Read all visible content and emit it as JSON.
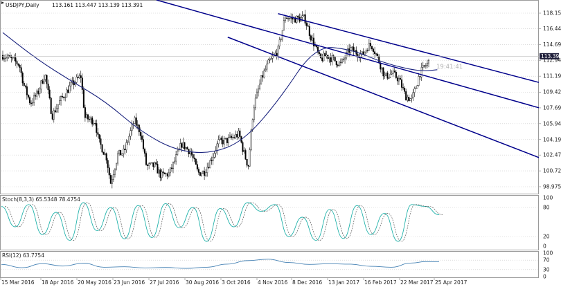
{
  "header": {
    "symbol": "USDJPY,Daily",
    "ohlc": "113.161 113.447 113.139 113.391"
  },
  "price_axis": {
    "ticks": [
      "118.155",
      "116.440",
      "114.690",
      "112.940",
      "111.190",
      "109.425",
      "107.690",
      "105.940",
      "104.190",
      "102.475",
      "100.725",
      "98.975"
    ],
    "current_price": "113.391"
  },
  "countdown": "19:41:41",
  "stoch": {
    "label": "Stoch(8,3,3) 65.5348 78.4754",
    "ticks": [
      "100",
      "80",
      "20",
      "0"
    ]
  },
  "rsi": {
    "label": "RSI(12) 63.7754",
    "ticks": [
      "100",
      "70",
      "30",
      "0"
    ]
  },
  "time_axis": {
    "labels": [
      "15 Mar 2016",
      "18 Apr 2016",
      "20 May 2016",
      "23 Jun 2016",
      "27 Jul 2016",
      "30 Aug 2016",
      "3 Oct 2016",
      "4 Nov 2016",
      "8 Dec 2016",
      "13 Jan 2017",
      "16 Feb 2017",
      "22 Mar 2017",
      "25 Apr 2017"
    ]
  },
  "colors": {
    "trendline": "#00008b",
    "moving_average": "#1a237e",
    "candle": "#000000",
    "stoch_main": "#20b2aa",
    "stoch_signal": "#555555",
    "rsi_line": "#4682b4",
    "price_tag_bg": "#1f1f3a"
  },
  "chart_data": {
    "type": "candlestick",
    "x_range": [
      "15 Mar 2016",
      "5 May 2017"
    ],
    "y_range": [
      98.0,
      119.0
    ],
    "price_path": [
      [
        "15 Mar 2016",
        113.5
      ],
      [
        "24 Mar 2016",
        113.0
      ],
      [
        "31 Mar 2016",
        112.5
      ],
      [
        "5 Apr 2016",
        110.0
      ],
      [
        "11 Apr 2016",
        108.2
      ],
      [
        "18 Apr 2016",
        109.3
      ],
      [
        "25 Apr 2016",
        111.5
      ],
      [
        "2 May 2016",
        106.8
      ],
      [
        "10 May 2016",
        108.5
      ],
      [
        "20 May 2016",
        110.1
      ],
      [
        "30 May 2016",
        111.2
      ],
      [
        "3 Jun 2016",
        106.6
      ],
      [
        "13 Jun 2016",
        106.2
      ],
      [
        "16 Jun 2016",
        104.1
      ],
      [
        "24 Jun 2016",
        102.2
      ],
      [
        "28 Jun 2016",
        99.4
      ],
      [
        "5 Jul 2016",
        102.5
      ],
      [
        "11 Jul 2016",
        102.8
      ],
      [
        "21 Jul 2016",
        106.3
      ],
      [
        "27 Jul 2016",
        105.0
      ],
      [
        "2 Aug 2016",
        101.2
      ],
      [
        "10 Aug 2016",
        101.3
      ],
      [
        "16 Aug 2016",
        100.2
      ],
      [
        "24 Aug 2016",
        100.4
      ],
      [
        "30 Aug 2016",
        102.0
      ],
      [
        "5 Sep 2016",
        103.7
      ],
      [
        "14 Sep 2016",
        102.8
      ],
      [
        "21 Sep 2016",
        100.5
      ],
      [
        "27 Sep 2016",
        100.6
      ],
      [
        "3 Oct 2016",
        101.8
      ],
      [
        "11 Oct 2016",
        103.9
      ],
      [
        "20 Oct 2016",
        104.1
      ],
      [
        "31 Oct 2016",
        104.8
      ],
      [
        "4 Nov 2016",
        103.0
      ],
      [
        "9 Nov 2016",
        101.2
      ],
      [
        "14 Nov 2016",
        107.7
      ],
      [
        "22 Nov 2016",
        111.0
      ],
      [
        "28 Nov 2016",
        112.5
      ],
      [
        "8 Dec 2016",
        114.0
      ],
      [
        "15 Dec 2016",
        117.8
      ],
      [
        "21 Dec 2016",
        117.5
      ],
      [
        "3 Jan 2017",
        117.6
      ],
      [
        "9 Jan 2017",
        115.5
      ],
      [
        "13 Jan 2017",
        114.5
      ],
      [
        "18 Jan 2017",
        113.0
      ],
      [
        "24 Jan 2017",
        113.5
      ],
      [
        "31 Jan 2017",
        113.0
      ],
      [
        "7 Feb 2017",
        112.5
      ],
      [
        "16 Feb 2017",
        114.2
      ],
      [
        "22 Feb 2017",
        113.8
      ],
      [
        "28 Feb 2017",
        113.5
      ],
      [
        "6 Mar 2017",
        114.6
      ],
      [
        "10 Mar 2017",
        114.5
      ],
      [
        "15 Mar 2017",
        113.2
      ],
      [
        "22 Mar 2017",
        111.1
      ],
      [
        "29 Mar 2017",
        111.5
      ],
      [
        "5 Apr 2017",
        110.8
      ],
      [
        "11 Apr 2017",
        109.0
      ],
      [
        "17 Apr 2017",
        108.6
      ],
      [
        "21 Apr 2017",
        109.9
      ],
      [
        "25 Apr 2017",
        111.5
      ],
      [
        "1 May 2017",
        112.4
      ],
      [
        "5 May 2017",
        112.9
      ],
      [
        "8 May 2017",
        113.4
      ],
      [
        "10 May 2017",
        114.1
      ],
      [
        "12 May 2017",
        113.4
      ]
    ],
    "moving_average": [
      [
        "15 Mar 2016",
        116.0
      ],
      [
        "18 Apr 2016",
        113.0
      ],
      [
        "20 May 2016",
        110.7
      ],
      [
        "23 Jun 2016",
        108.4
      ],
      [
        "27 Jul 2016",
        105.1
      ],
      [
        "30 Aug 2016",
        103.0
      ],
      [
        "3 Oct 2016",
        102.6
      ],
      [
        "4 Nov 2016",
        104.0
      ],
      [
        "8 Dec 2016",
        108.4
      ],
      [
        "13 Jan 2017",
        114.5
      ],
      [
        "16 Feb 2017",
        114.2
      ],
      [
        "22 Mar 2017",
        112.6
      ],
      [
        "25 Apr 2017",
        111.7
      ],
      [
        "12 May 2017",
        111.9
      ]
    ],
    "trend_lines": [
      {
        "from": [
          "15 Mar 2016",
          123.5
        ],
        "to": [
          "15 May 2017",
          107.7
        ]
      },
      {
        "from": [
          "20 Oct 2016",
          115.5
        ],
        "to": [
          "15 May 2017",
          102.2
        ]
      },
      {
        "from": [
          "8 Dec 2016",
          118.1
        ],
        "to": [
          "15 May 2017",
          110.5
        ]
      }
    ],
    "stoch_values": [
      [
        0,
        82
      ],
      [
        20,
        40
      ],
      [
        40,
        86
      ],
      [
        60,
        24
      ],
      [
        80,
        70
      ],
      [
        100,
        12
      ],
      [
        120,
        90
      ],
      [
        140,
        32
      ],
      [
        160,
        80
      ],
      [
        180,
        15
      ],
      [
        200,
        84
      ],
      [
        220,
        18
      ],
      [
        240,
        88
      ],
      [
        260,
        38
      ],
      [
        280,
        80
      ],
      [
        300,
        10
      ],
      [
        320,
        78
      ],
      [
        340,
        40
      ],
      [
        360,
        90
      ],
      [
        380,
        72
      ],
      [
        400,
        86
      ],
      [
        420,
        20
      ],
      [
        440,
        60
      ],
      [
        460,
        12
      ],
      [
        480,
        76
      ],
      [
        500,
        16
      ],
      [
        520,
        84
      ],
      [
        540,
        24
      ],
      [
        560,
        68
      ],
      [
        580,
        10
      ],
      [
        600,
        86
      ],
      [
        620,
        82
      ],
      [
        640,
        65
      ]
    ],
    "rsi_values": [
      [
        0,
        52
      ],
      [
        30,
        38
      ],
      [
        60,
        55
      ],
      [
        90,
        45
      ],
      [
        120,
        57
      ],
      [
        150,
        40
      ],
      [
        180,
        42
      ],
      [
        210,
        37
      ],
      [
        240,
        39
      ],
      [
        270,
        35
      ],
      [
        300,
        40
      ],
      [
        330,
        53
      ],
      [
        360,
        68
      ],
      [
        390,
        74
      ],
      [
        420,
        60
      ],
      [
        450,
        52
      ],
      [
        480,
        55
      ],
      [
        510,
        53
      ],
      [
        540,
        44
      ],
      [
        570,
        40
      ],
      [
        600,
        58
      ],
      [
        620,
        64
      ],
      [
        640,
        63
      ]
    ]
  }
}
